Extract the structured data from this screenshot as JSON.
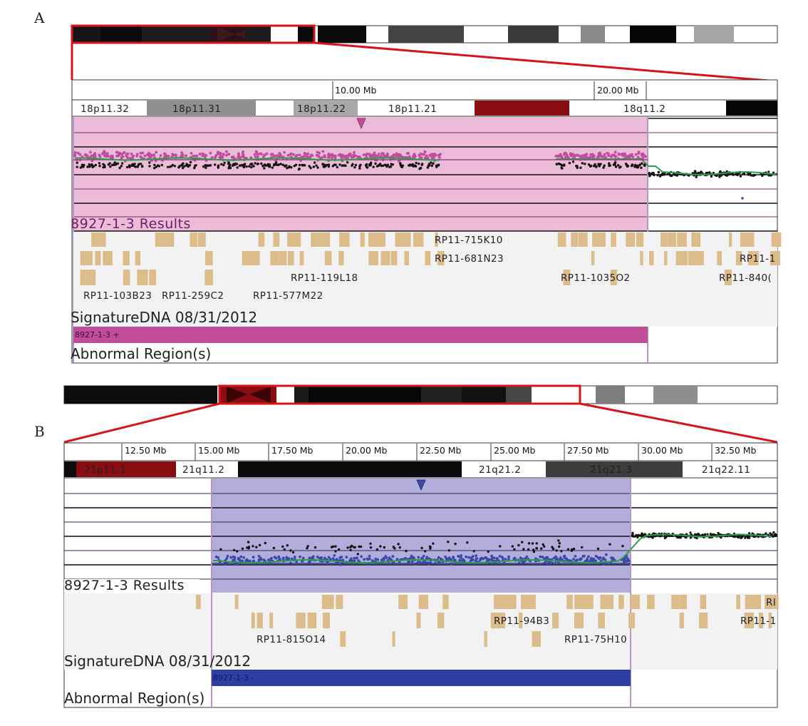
{
  "colors": {
    "highlight_border": "#d7141a",
    "gain_shade": "#ebbbd8",
    "gain_dots": "#c04c9e",
    "loss_shade": "#b3addc",
    "loss_dots": "#3c49a8",
    "gain_bar": "#c14d9a",
    "loss_bar": "#2d3fa3",
    "trend": "#2aa048",
    "clone_tick": "#dcbc8a",
    "track_bg": "#f2f2f2"
  },
  "panelA": {
    "label": "A",
    "ruler": [
      "10.00 Mb",
      "20.00 Mb"
    ],
    "bands": [
      "18p11.32",
      "18p11.31",
      "18p11.22",
      "18p11.21",
      "18q11.2"
    ],
    "results_label": "8927-1-3 Results",
    "clones": [
      "RP11-715K10",
      "RP11-681N23",
      "RP11-119L18",
      "RP11-103B23",
      "RP11-259C2",
      "RP11-577M22",
      "RP11-1035O2",
      "RP11-1",
      "RP11-840("
    ],
    "signature_label": "SignatureDNA 08/31/2012",
    "region_bar": "8927-1-3 +",
    "abnormal_label": "Abnormal Region(s)"
  },
  "panelB": {
    "label": "B",
    "ruler": [
      "12.50 Mb",
      "15.00 Mb",
      "17.50 Mb",
      "20.00 Mb",
      "22.50 Mb",
      "25.00 Mb",
      "27.50 Mb",
      "30.00 Mb",
      "32.50 Mb"
    ],
    "bands": [
      "21p11.1",
      "21q11.2",
      "21q21.2",
      "21q21.3",
      "21q22.11"
    ],
    "results_label": "8927-1-3 Results",
    "clones": [
      "RP11-94B3",
      "RP11-815O14",
      "RP11-75H10",
      "RP11-1",
      "RI"
    ],
    "signature_label": "SignatureDNA 08/31/2012",
    "region_bar": "8927-1-3 -",
    "abnormal_label": "Abnormal Region(s)"
  }
}
